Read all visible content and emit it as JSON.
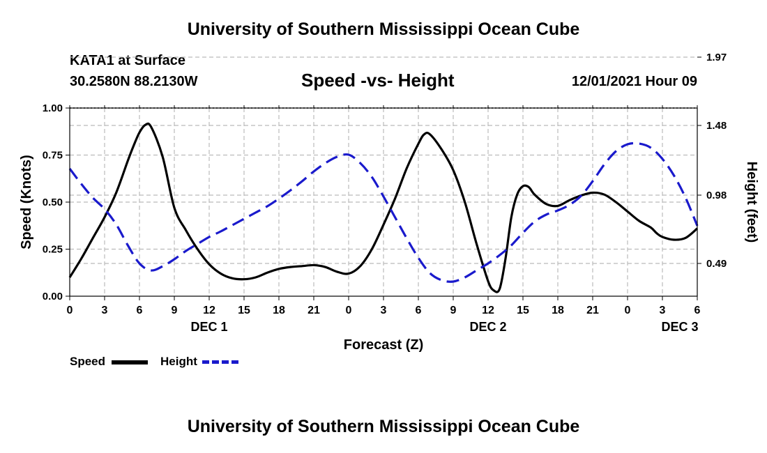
{
  "page": {
    "top_title": "University of Southern Mississippi Ocean Cube",
    "bottom_title": "University of Southern Mississippi Ocean Cube",
    "station": "KATA1 at Surface",
    "coords": "30.2580N  88.2130W",
    "chart_title": "Speed -vs- Height",
    "datetime": "12/01/2021 Hour 09"
  },
  "legend": {
    "speed_label": "Speed",
    "height_label": "Height"
  },
  "colors": {
    "speed": "#000000",
    "height": "#1a1acc",
    "grid": "#bbbbbb"
  },
  "chart_data": {
    "type": "line",
    "title": "Speed -vs- Height",
    "xlabel": "Forecast (Z)",
    "ylabel": "Speed (Knots)",
    "y2label": "Height (feet)",
    "xlim": [
      0,
      54
    ],
    "ylim": [
      0,
      1
    ],
    "y2lim": [
      0.255,
      1.605
    ],
    "x_ticks": [
      0,
      3,
      6,
      9,
      12,
      15,
      18,
      21,
      24,
      27,
      30,
      33,
      36,
      39,
      42,
      45,
      48,
      51,
      54
    ],
    "x_tick_labels": [
      "0",
      "3",
      "6",
      "9",
      "12",
      "15",
      "18",
      "21",
      "0",
      "3",
      "6",
      "9",
      "12",
      "15",
      "18",
      "21",
      "0",
      "3",
      "6"
    ],
    "day_labels": [
      {
        "x": 12,
        "label": "DEC 1"
      },
      {
        "x": 36,
        "label": "DEC 2"
      },
      {
        "x": 52.5,
        "label": "DEC 3"
      }
    ],
    "y_ticks": [
      0,
      0.25,
      0.5,
      0.75,
      1.0
    ],
    "y_tick_labels": [
      "0.00",
      "0.25",
      "0.50",
      "0.75",
      "1.00"
    ],
    "y2_ticks": [
      0.49,
      0.98,
      1.48,
      1.97
    ],
    "y2_tick_labels": [
      "0.49",
      "0.98",
      "1.48",
      "1.97"
    ],
    "grid": true,
    "series": [
      {
        "name": "Speed",
        "axis": "left",
        "style": "solid",
        "x": [
          0,
          1,
          2,
          3,
          4,
          5,
          5.5,
          6,
          6.5,
          7,
          8,
          9,
          10,
          11,
          12,
          13,
          14,
          15,
          16,
          17,
          18,
          19,
          20,
          21,
          22,
          23,
          24,
          25,
          26,
          27,
          28,
          29,
          30,
          30.5,
          31,
          32,
          33,
          34,
          35,
          36,
          36.5,
          37,
          37.5,
          38,
          38.5,
          39,
          39.5,
          40,
          41,
          42,
          43,
          44,
          45,
          46,
          47,
          48,
          49,
          50,
          50.5,
          51,
          52,
          53,
          54
        ],
        "values": [
          0.1,
          0.2,
          0.31,
          0.42,
          0.55,
          0.72,
          0.8,
          0.87,
          0.91,
          0.9,
          0.74,
          0.47,
          0.35,
          0.25,
          0.17,
          0.12,
          0.095,
          0.09,
          0.1,
          0.125,
          0.145,
          0.155,
          0.16,
          0.165,
          0.155,
          0.13,
          0.12,
          0.16,
          0.25,
          0.38,
          0.52,
          0.68,
          0.81,
          0.86,
          0.86,
          0.78,
          0.67,
          0.5,
          0.28,
          0.08,
          0.03,
          0.04,
          0.2,
          0.42,
          0.54,
          0.585,
          0.58,
          0.54,
          0.49,
          0.48,
          0.51,
          0.535,
          0.55,
          0.54,
          0.5,
          0.45,
          0.4,
          0.365,
          0.335,
          0.315,
          0.3,
          0.31,
          0.36
        ]
      },
      {
        "name": "Height",
        "axis": "right",
        "style": "dashed",
        "x": [
          0,
          1,
          2,
          3,
          4,
          5,
          6,
          7,
          8,
          9,
          10,
          11,
          12,
          13,
          14,
          15,
          16,
          17,
          18,
          19,
          20,
          21,
          22,
          23,
          24,
          25,
          26,
          27,
          28,
          29,
          30,
          31,
          32,
          33,
          34,
          35,
          36,
          37,
          38,
          39,
          40,
          41,
          42,
          43,
          44,
          45,
          46,
          47,
          48,
          49,
          50,
          51,
          52,
          53,
          54
        ],
        "values": [
          1.17,
          1.06,
          0.96,
          0.88,
          0.77,
          0.62,
          0.49,
          0.44,
          0.47,
          0.52,
          0.58,
          0.63,
          0.68,
          0.72,
          0.765,
          0.81,
          0.855,
          0.9,
          0.955,
          1.015,
          1.08,
          1.15,
          1.21,
          1.255,
          1.27,
          1.21,
          1.11,
          0.97,
          0.82,
          0.67,
          0.53,
          0.42,
          0.37,
          0.36,
          0.39,
          0.44,
          0.49,
          0.55,
          0.62,
          0.71,
          0.79,
          0.84,
          0.87,
          0.91,
          0.975,
          1.08,
          1.2,
          1.295,
          1.345,
          1.35,
          1.32,
          1.24,
          1.12,
          0.96,
          0.76
        ]
      }
    ]
  }
}
